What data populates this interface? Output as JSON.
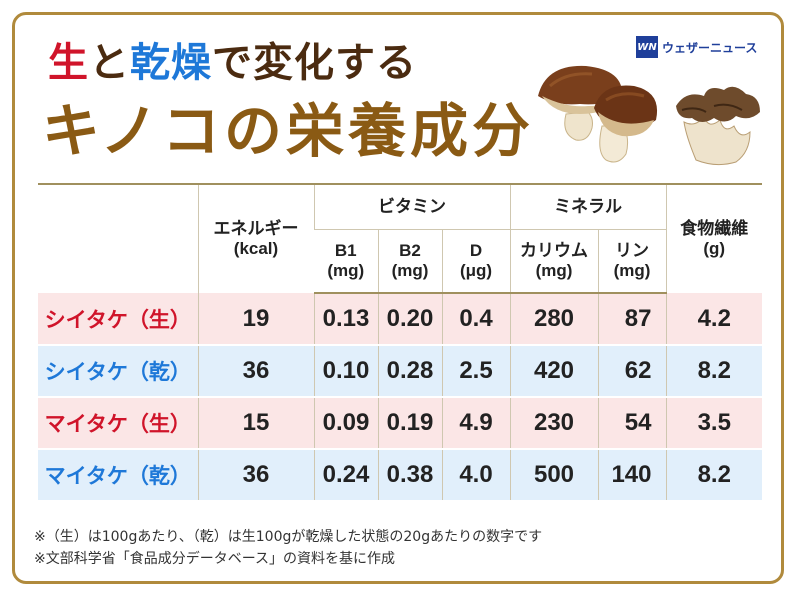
{
  "title": {
    "part1_raw": "生",
    "part1_mid": "と",
    "part1_dry": "乾燥",
    "part1_rest": "で変化する",
    "line2": "キノコの栄養成分"
  },
  "logo": {
    "mark": "WN",
    "text": "ウェザーニュース"
  },
  "table": {
    "header": {
      "energy": "エネルギー",
      "energy_unit": "(kcal)",
      "vitamin": "ビタミン",
      "mineral": "ミネラル",
      "fiber": "食物繊維",
      "fiber_unit": "(g)",
      "b1": "B1",
      "b1_unit": "(mg)",
      "b2": "B2",
      "b2_unit": "(mg)",
      "d": "D",
      "d_unit": "(μg)",
      "potassium": "カリウム",
      "potassium_unit": "(mg)",
      "phosphorus": "リン",
      "phosphorus_unit": "(mg)"
    },
    "rows": [
      {
        "label": "シイタケ（生）",
        "energy": "19",
        "b1": "0.13",
        "b2": "0.20",
        "d": "0.4",
        "k": "280",
        "p": "87",
        "fiber": "4.2"
      },
      {
        "label": "シイタケ（乾）",
        "energy": "36",
        "b1": "0.10",
        "b2": "0.28",
        "d": "2.5",
        "k": "420",
        "p": "62",
        "fiber": "8.2"
      },
      {
        "label": "マイタケ（生）",
        "energy": "15",
        "b1": "0.09",
        "b2": "0.19",
        "d": "4.9",
        "k": "230",
        "p": "54",
        "fiber": "3.5"
      },
      {
        "label": "マイタケ（乾）",
        "energy": "36",
        "b1": "0.24",
        "b2": "0.38",
        "d": "4.0",
        "k": "500",
        "p": "140",
        "fiber": "8.2"
      }
    ]
  },
  "notes": [
    "※（生）は100gあたり、（乾）は生100gが乾燥した状態の20gあたりの数字です",
    "※文部科学省「食品成分データベース」の資料を基に作成"
  ],
  "colors": {
    "raw": "#d0142a",
    "dry": "#1e78d8",
    "title_brown": "#8a5a14",
    "border": "#b08a3c"
  },
  "icons": [
    "shiitake-mushroom-illustration",
    "maitake-mushroom-illustration",
    "weathernews-logo-icon"
  ]
}
